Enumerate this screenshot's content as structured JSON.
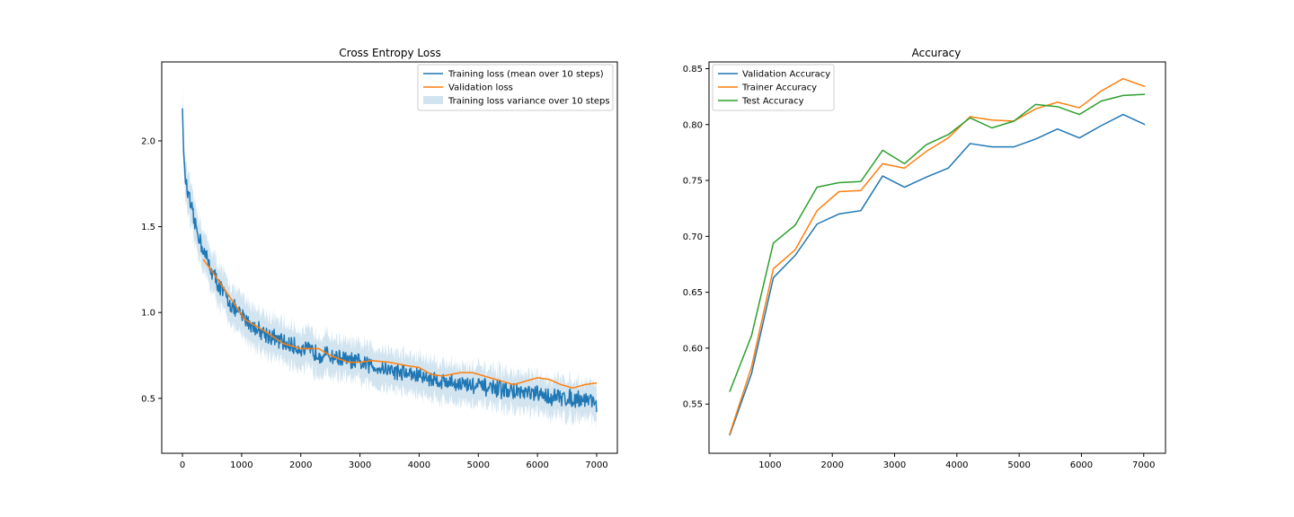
{
  "colors": {
    "series1": "#1f77b4",
    "series2": "#ff7f0e",
    "series3": "#2ca02c",
    "band": "#1f77b4"
  },
  "chart_data": [
    {
      "type": "line",
      "title": "Cross Entropy Loss",
      "xlabel": "",
      "ylabel": "",
      "xlim": [
        -350,
        7350
      ],
      "ylim": [
        0.18,
        2.46
      ],
      "xticks": [
        "0",
        "1000",
        "2000",
        "3000",
        "4000",
        "5000",
        "6000",
        "7000"
      ],
      "yticks": [
        "0.5",
        "1.0",
        "1.5",
        "2.0"
      ],
      "grid": false,
      "legend_position": "upper right",
      "training_loss": {
        "name": "Training loss (mean over 10 steps)",
        "x": [
          0,
          20,
          50,
          100,
          150,
          200,
          300,
          400,
          500,
          600,
          700,
          800,
          900,
          1000,
          1100,
          1200,
          1400,
          1600,
          1800,
          2000,
          2200,
          2400,
          2600,
          2800,
          3000,
          3200,
          3400,
          3600,
          3800,
          4000,
          4200,
          4400,
          4600,
          4800,
          5000,
          5200,
          5400,
          5600,
          5800,
          6000,
          6200,
          6400,
          6600,
          6800,
          7000
        ],
        "y": [
          2.19,
          1.93,
          1.78,
          1.68,
          1.6,
          1.53,
          1.42,
          1.32,
          1.24,
          1.17,
          1.11,
          1.06,
          1.01,
          0.98,
          0.95,
          0.92,
          0.88,
          0.84,
          0.81,
          0.79,
          0.77,
          0.755,
          0.74,
          0.72,
          0.705,
          0.69,
          0.675,
          0.66,
          0.645,
          0.63,
          0.615,
          0.6,
          0.59,
          0.58,
          0.57,
          0.56,
          0.55,
          0.54,
          0.53,
          0.52,
          0.51,
          0.505,
          0.5,
          0.495,
          0.49
        ],
        "noise_amplitude": 0.045
      },
      "training_variance": {
        "name": "Training loss variance over 10 steps",
        "half_width_start": 0.1,
        "half_width_end": 0.09
      },
      "validation_loss": {
        "name": "Validation loss",
        "x": [
          350,
          500,
          700,
          900,
          1050,
          1200,
          1400,
          1700,
          2000,
          2300,
          2500,
          2800,
          3000,
          3200,
          3500,
          3800,
          4000,
          4200,
          4400,
          4700,
          4900,
          5200,
          5400,
          5600,
          5800,
          6000,
          6200,
          6400,
          6600,
          6800,
          7000
        ],
        "y": [
          1.31,
          1.24,
          1.14,
          1.04,
          0.96,
          0.93,
          0.89,
          0.82,
          0.79,
          0.79,
          0.75,
          0.71,
          0.71,
          0.72,
          0.71,
          0.69,
          0.68,
          0.64,
          0.63,
          0.65,
          0.65,
          0.62,
          0.6,
          0.58,
          0.6,
          0.62,
          0.61,
          0.58,
          0.56,
          0.58,
          0.59
        ]
      }
    },
    {
      "type": "line",
      "title": "Accuracy",
      "xlabel": "",
      "ylabel": "",
      "xlim": [
        20,
        7350
      ],
      "ylim": [
        0.506,
        0.856
      ],
      "xticks": [
        "1000",
        "2000",
        "3000",
        "4000",
        "5000",
        "6000",
        "7000"
      ],
      "yticks": [
        "0.55",
        "0.60",
        "0.65",
        "0.70",
        "0.75",
        "0.80",
        "0.85"
      ],
      "grid": false,
      "legend_position": "upper left",
      "x": [
        351,
        702,
        1053,
        1404,
        1755,
        2106,
        2457,
        2808,
        3159,
        3510,
        3861,
        4212,
        4563,
        4914,
        5265,
        5616,
        5967,
        6318,
        6669,
        7020
      ],
      "series": [
        {
          "name": "Validation Accuracy",
          "values": [
            0.522,
            0.577,
            0.663,
            0.683,
            0.711,
            0.72,
            0.723,
            0.754,
            0.744,
            0.753,
            0.761,
            0.783,
            0.78,
            0.78,
            0.787,
            0.796,
            0.788,
            0.799,
            0.809,
            0.8
          ]
        },
        {
          "name": "Trainer Accuracy",
          "values": [
            0.523,
            0.583,
            0.671,
            0.688,
            0.723,
            0.74,
            0.741,
            0.765,
            0.761,
            0.776,
            0.788,
            0.807,
            0.804,
            0.803,
            0.814,
            0.82,
            0.815,
            0.83,
            0.841,
            0.834
          ]
        },
        {
          "name": "Test Accuracy",
          "values": [
            0.561,
            0.611,
            0.694,
            0.71,
            0.744,
            0.748,
            0.749,
            0.777,
            0.765,
            0.782,
            0.791,
            0.806,
            0.797,
            0.803,
            0.818,
            0.816,
            0.809,
            0.821,
            0.826,
            0.827
          ]
        }
      ]
    }
  ]
}
